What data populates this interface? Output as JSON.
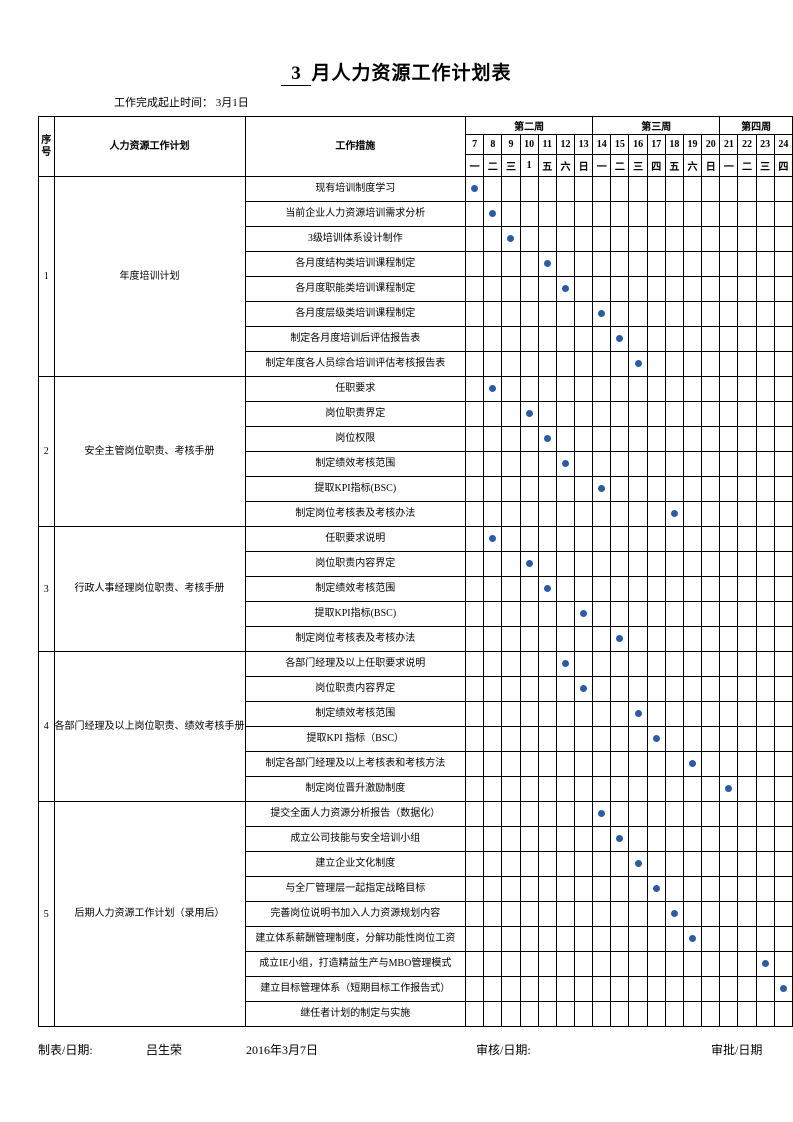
{
  "title_prefix": "",
  "title_month": "3",
  "title_suffix": "月人力资源工作计划表",
  "subhead": "工作完成起止时间：  3月1日",
  "header": {
    "seq": "序号",
    "plan": "人力资源工作计划",
    "action": "工作措施",
    "week_labels": [
      "第二周",
      "第三周",
      "第四周"
    ],
    "week_spans": [
      7,
      7,
      4
    ],
    "day_numbers": [
      "7",
      "8",
      "9",
      "10",
      "11",
      "12",
      "13",
      "14",
      "15",
      "16",
      "17",
      "18",
      "19",
      "20",
      "21",
      "22",
      "23",
      "24"
    ],
    "day_names": [
      "一",
      "二",
      "三",
      "1",
      "五",
      "六",
      "日",
      "一",
      "二",
      "三",
      "四",
      "五",
      "六",
      "日",
      "一",
      "二",
      "三",
      "四"
    ]
  },
  "dot_color": "#2b5ba1",
  "groups": [
    {
      "seq": "1",
      "plan": "年度培训计划",
      "rows": [
        {
          "action": "现有培训制度学习",
          "marks": [
            0
          ]
        },
        {
          "action": "当前企业人力资源培训需求分析",
          "marks": [
            1
          ]
        },
        {
          "action": "3级培训体系设计制作",
          "marks": [
            2
          ]
        },
        {
          "action": "各月度结构类培训课程制定",
          "marks": [
            4
          ]
        },
        {
          "action": "各月度职能类培训课程制定",
          "marks": [
            5
          ]
        },
        {
          "action": "各月度层级类培训课程制定",
          "marks": [
            7
          ]
        },
        {
          "action": "制定各月度培训后评估报告表",
          "marks": [
            8
          ]
        },
        {
          "action": "制定年度各人员综合培训评估考核报告表",
          "marks": [
            9
          ]
        }
      ]
    },
    {
      "seq": "2",
      "plan": "安全主管岗位职责、考核手册",
      "rows": [
        {
          "action": "任职要求",
          "marks": [
            1
          ]
        },
        {
          "action": "岗位职责界定",
          "marks": [
            3
          ]
        },
        {
          "action": "岗位权限",
          "marks": [
            4
          ]
        },
        {
          "action": "制定绩效考核范围",
          "marks": [
            5
          ]
        },
        {
          "action": "提取KPI指标(BSC)",
          "marks": [
            7
          ]
        },
        {
          "action": "制定岗位考核表及考核办法",
          "marks": [
            11
          ]
        }
      ]
    },
    {
      "seq": "3",
      "plan": "行政人事经理岗位职责、考核手册",
      "rows": [
        {
          "action": "任职要求说明",
          "marks": [
            1
          ]
        },
        {
          "action": "岗位职责内容界定",
          "marks": [
            3
          ]
        },
        {
          "action": "制定绩效考核范围",
          "marks": [
            4
          ]
        },
        {
          "action": "提取KPI指标(BSC)",
          "marks": [
            6
          ]
        },
        {
          "action": "制定岗位考核表及考核办法",
          "marks": [
            8
          ]
        }
      ]
    },
    {
      "seq": "4",
      "plan": "各部门经理及以上岗位职责、绩效考核手册",
      "rows": [
        {
          "action": "各部门经理及以上任职要求说明",
          "marks": [
            5
          ]
        },
        {
          "action": "岗位职责内容界定",
          "marks": [
            6
          ]
        },
        {
          "action": "制定绩效考核范围",
          "marks": [
            9
          ]
        },
        {
          "action": "提取KPI 指标（BSC）",
          "marks": [
            10
          ]
        },
        {
          "action": "制定各部门经理及以上考核表和考核方法",
          "marks": [
            12
          ]
        },
        {
          "action": "制定岗位晋升激励制度",
          "marks": [
            14
          ]
        }
      ]
    },
    {
      "seq": "5",
      "plan": "后期人力资源工作计划（录用后）",
      "rows": [
        {
          "action": "提交全面人力资源分析报告（数据化）",
          "marks": [
            7
          ]
        },
        {
          "action": "成立公司技能与安全培训小组",
          "marks": [
            8
          ]
        },
        {
          "action": "建立企业文化制度",
          "marks": [
            9
          ]
        },
        {
          "action": "与全厂管理层一起指定战略目标",
          "marks": [
            10
          ]
        },
        {
          "action": "完善岗位说明书加入人力资源规划内容",
          "marks": [
            11
          ]
        },
        {
          "action": "建立体系薪酬管理制度，分解功能性岗位工资",
          "marks": [
            12
          ]
        },
        {
          "action": "成立IE小组，打造精益生产与MBO管理模式",
          "marks": [
            16
          ]
        },
        {
          "action": "建立目标管理体系（短期目标工作报告式）",
          "marks": [
            17
          ]
        },
        {
          "action": "继任者计划的制定与实施",
          "marks": []
        }
      ]
    }
  ],
  "footer": {
    "maker_label": "制表/日期:",
    "maker_name": "吕生荣",
    "maker_date": "2016年3月7日",
    "review_label": "审核/日期:",
    "approve_label": "审批/日期"
  }
}
